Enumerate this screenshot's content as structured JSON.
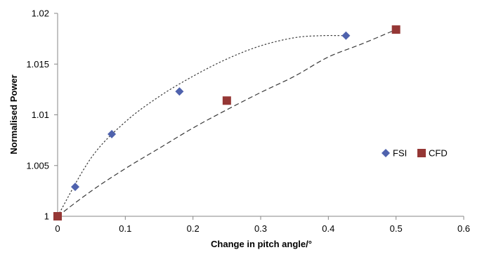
{
  "chart_data": {
    "type": "scatter",
    "title": "",
    "xlabel": "Change in pitch angle/°",
    "ylabel": "Normalised Power",
    "xlim": [
      0,
      0.6
    ],
    "ylim": [
      1,
      1.02
    ],
    "x_ticks": [
      0,
      0.1,
      0.2,
      0.3,
      0.4,
      0.5,
      0.6
    ],
    "y_ticks": [
      1,
      1.005,
      1.01,
      1.015,
      1.02
    ],
    "x_tick_labels": [
      "0",
      "0.1",
      "0.2",
      "0.3",
      "0.4",
      "0.5",
      "0.6"
    ],
    "y_tick_labels": [
      "1",
      "1.005",
      "1.01",
      "1.015",
      "1.02"
    ],
    "grid": false,
    "legend_position": "right",
    "series": [
      {
        "name": "FSI",
        "marker": "diamond",
        "color": "#4f62ad",
        "x": [
          0,
          0.026,
          0.08,
          0.18,
          0.426
        ],
        "y": [
          1.0,
          1.0029,
          1.0081,
          1.0123,
          1.0178
        ],
        "trendline": {
          "style": "dotted",
          "x": [
            0,
            0.05,
            0.1,
            0.15,
            0.2,
            0.25,
            0.3,
            0.35,
            0.39,
            0.426
          ],
          "y": [
            1.0,
            1.0058,
            1.0093,
            1.0118,
            1.0138,
            1.0155,
            1.0168,
            1.0176,
            1.0178,
            1.0178
          ]
        }
      },
      {
        "name": "CFD",
        "marker": "square",
        "color": "#953735",
        "x": [
          0,
          0.25,
          0.5
        ],
        "y": [
          1.0,
          1.0114,
          1.0184
        ],
        "trendline": {
          "style": "dashed",
          "x": [
            0,
            0.05,
            0.1,
            0.15,
            0.2,
            0.25,
            0.3,
            0.35,
            0.4,
            0.45,
            0.5
          ],
          "y": [
            1.0,
            1.0025,
            1.0047,
            1.0067,
            1.0087,
            1.0105,
            1.0122,
            1.0138,
            1.0157,
            1.017,
            1.0184
          ]
        }
      }
    ]
  }
}
